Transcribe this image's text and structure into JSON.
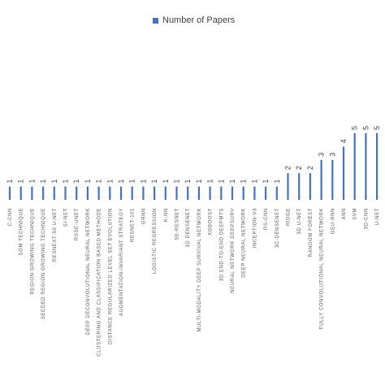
{
  "chart_data": {
    "type": "bar",
    "legend": {
      "label": "Number of Papers",
      "position": "top"
    },
    "color": "#4472c4",
    "ylim": [
      0,
      5
    ],
    "grid": false,
    "categories": [
      "C-CNN",
      "SOM TECHNIQUE",
      "REGION GROWING TECHNIQUE",
      "SEEDED REGION GROWING TECHNIQUE",
      "RESNEXT-50 U-NET",
      "SI-NET",
      "RSSE-UNET",
      "DEEP DECONVOLUTIONAL NEURAL NETWORK",
      "CLUSTERING AND CLASSIFICATION BASED METHODE",
      "DISTANCE REGULARIZED LEVEL SET EVOLUTION",
      "AUGMENTATION-INVARIANT STRATEGY",
      "RESNET-101",
      "GRNN",
      "LOGISTIC REGRESSION",
      "K-NN",
      "SE-RESNET",
      "3D DENSENET",
      "MULTI-MODALITY DEEP SURVIVAL NETWORK",
      "XGBOOST",
      "3D END-TO-END DEEPMTS",
      "NEURAL NETWORK DEEPSURV",
      "DEEP NEURAL NETWORK",
      "INCEPTION-V3",
      "RS-CNN",
      "3C-DENSENET",
      "RIDGE",
      "3D U-NET",
      "RANDOM FOREST",
      "FULLY CONVOLUTIONAL NEURAL NETWORK",
      "GEU-RNN",
      "ANN",
      "SVM",
      "3D-CNN",
      "U-NET"
    ],
    "values": [
      1,
      1,
      1,
      1,
      1,
      1,
      1,
      1,
      1,
      1,
      1,
      1,
      1,
      1,
      1,
      1,
      1,
      1,
      1,
      1,
      1,
      1,
      1,
      1,
      1,
      2,
      2,
      2,
      3,
      3,
      4,
      5,
      5,
      5
    ]
  }
}
